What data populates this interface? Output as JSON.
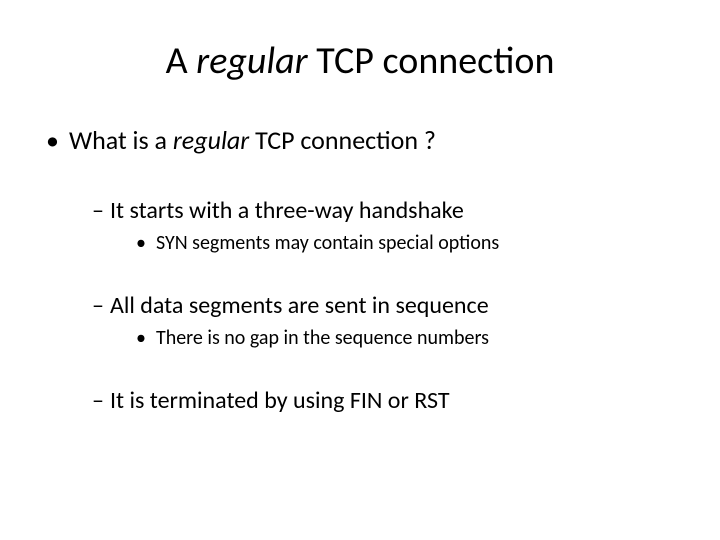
{
  "title": {
    "prefix": "A ",
    "italic": "regular",
    "suffix": " TCP connection"
  },
  "level1": {
    "bullet": "•",
    "prefix": "What is a ",
    "italic": "regular",
    "suffix": " TCP connection ?"
  },
  "groups": [
    {
      "l2": {
        "dash": "–",
        "text": "It starts with a three-way handshake"
      },
      "l3": {
        "bullet": "•",
        "text": "SYN segments may contain special options"
      }
    },
    {
      "l2": {
        "dash": "–",
        "text": "All data segments are sent in sequence"
      },
      "l3": {
        "bullet": "•",
        "text": "There is no gap in the sequence numbers"
      }
    },
    {
      "l2": {
        "dash": "–",
        "text": "It is terminated by using FIN or RST"
      }
    }
  ]
}
